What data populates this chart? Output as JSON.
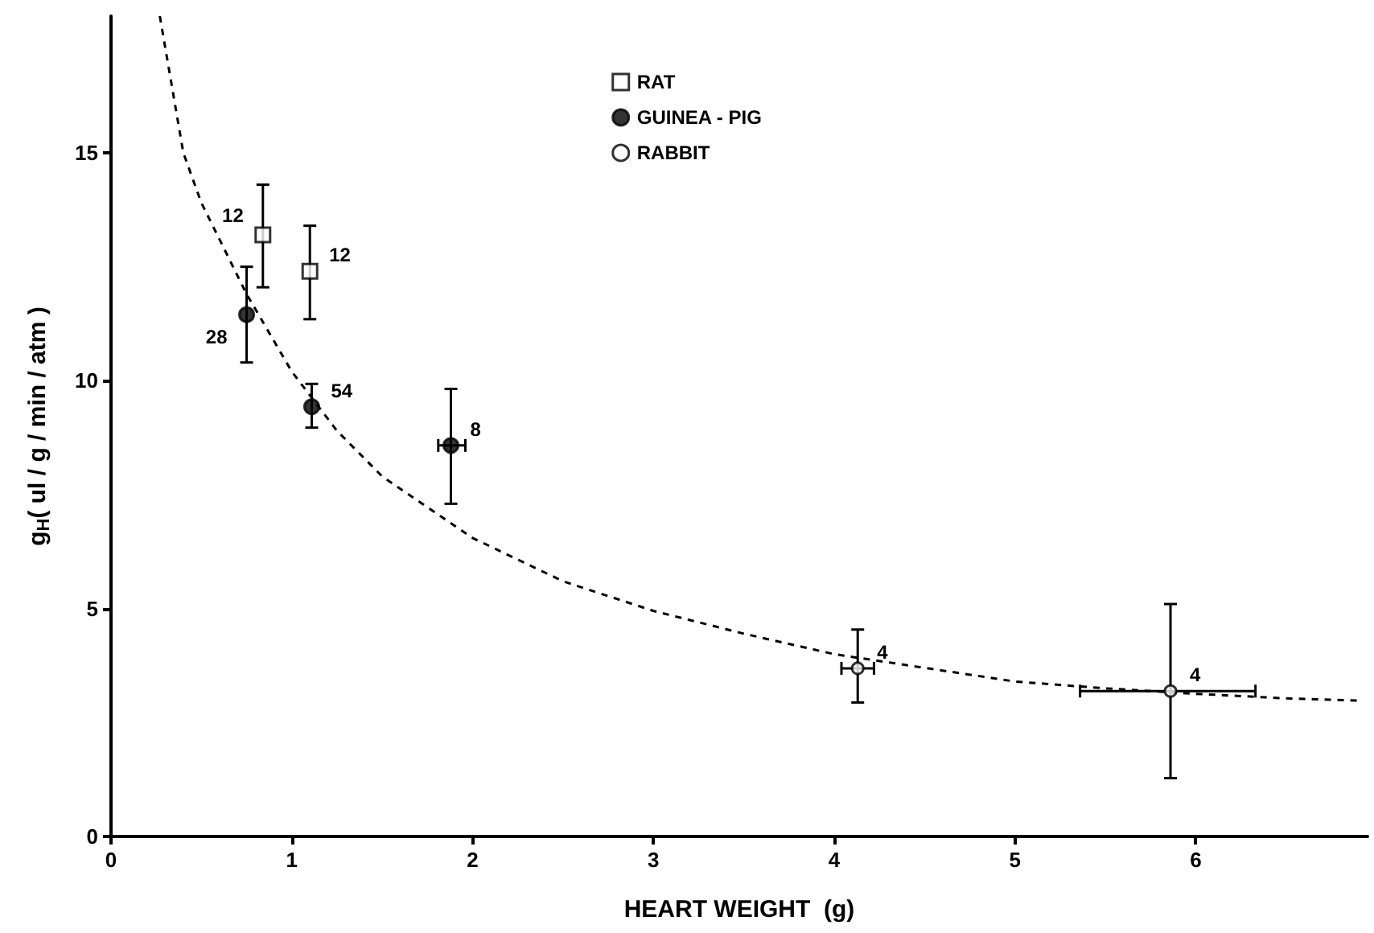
{
  "chart_data": {
    "type": "scatter",
    "xlabel": "HEART WEIGHT  (g)",
    "ylabel": "g$_{H}$( ul / g / min / atm )",
    "xlim": [
      0,
      6.95
    ],
    "xticks": [
      0,
      1,
      2,
      3,
      4,
      5,
      6
    ],
    "ylim": [
      0,
      18
    ],
    "yticks": [
      0,
      5,
      10,
      15
    ],
    "grid": false,
    "legend": "top",
    "series": [
      {
        "name": "RAT",
        "color": "#ffffff",
        "marker": "square",
        "x": [
          0.84,
          1.1
        ],
        "values": [
          13.2,
          12.4
        ],
        "errors": [
          [
            12.05,
            14.3
          ],
          [
            11.35,
            13.4
          ]
        ]
      },
      {
        "name": "GUINEA - PIG",
        "color": "#000000",
        "marker": "circle",
        "x": [
          0.75,
          1.11,
          1.88
        ],
        "values": [
          11.45,
          9.43,
          8.58
        ],
        "errors": [
          [
            10.4,
            12.5
          ],
          [
            8.97,
            9.93
          ],
          [
            7.3,
            9.82
          ]
        ],
        "xerrors": [
          null,
          null,
          [
            1.81,
            1.96
          ]
        ]
      },
      {
        "name": "RABBIT",
        "color": "#ffffff",
        "marker": "circle",
        "x": [
          4.13,
          5.86
        ],
        "values": [
          3.69,
          3.19
        ],
        "errors": [
          [
            2.94,
            4.54
          ],
          [
            1.28,
            5.1
          ]
        ],
        "xerrors": [
          [
            4.04,
            4.22
          ],
          [
            5.36,
            6.33
          ]
        ]
      },
      {
        "type": "line",
        "color": "#000000",
        "line_style": "dashed",
        "marker": "none",
        "x": [
          0.27,
          0.4,
          0.5,
          0.75,
          1.0,
          1.25,
          1.5,
          2,
          2.5,
          3,
          3.5,
          4,
          4.5,
          5,
          5.5,
          6,
          6.5,
          6.9
        ],
        "values": [
          18.0,
          15.0,
          13.9,
          11.9,
          10.2,
          8.9,
          7.9,
          6.55,
          5.6,
          4.95,
          4.45,
          4.0,
          3.7,
          3.4,
          3.25,
          3.13,
          3.03,
          2.98
        ]
      }
    ],
    "annotations": [
      {
        "text": "12",
        "x": 0.84,
        "y": 13.2
      },
      {
        "text": "12",
        "x": 1.1,
        "y": 12.4
      },
      {
        "text": "28",
        "x": 0.75,
        "y": 11.45
      },
      {
        "text": "54",
        "x": 1.11,
        "y": 9.43
      },
      {
        "text": "8",
        "x": 1.88,
        "y": 8.58
      },
      {
        "text": "4",
        "x": 4.13,
        "y": 3.69
      },
      {
        "text": "4",
        "x": 5.86,
        "y": 3.19
      }
    ]
  }
}
